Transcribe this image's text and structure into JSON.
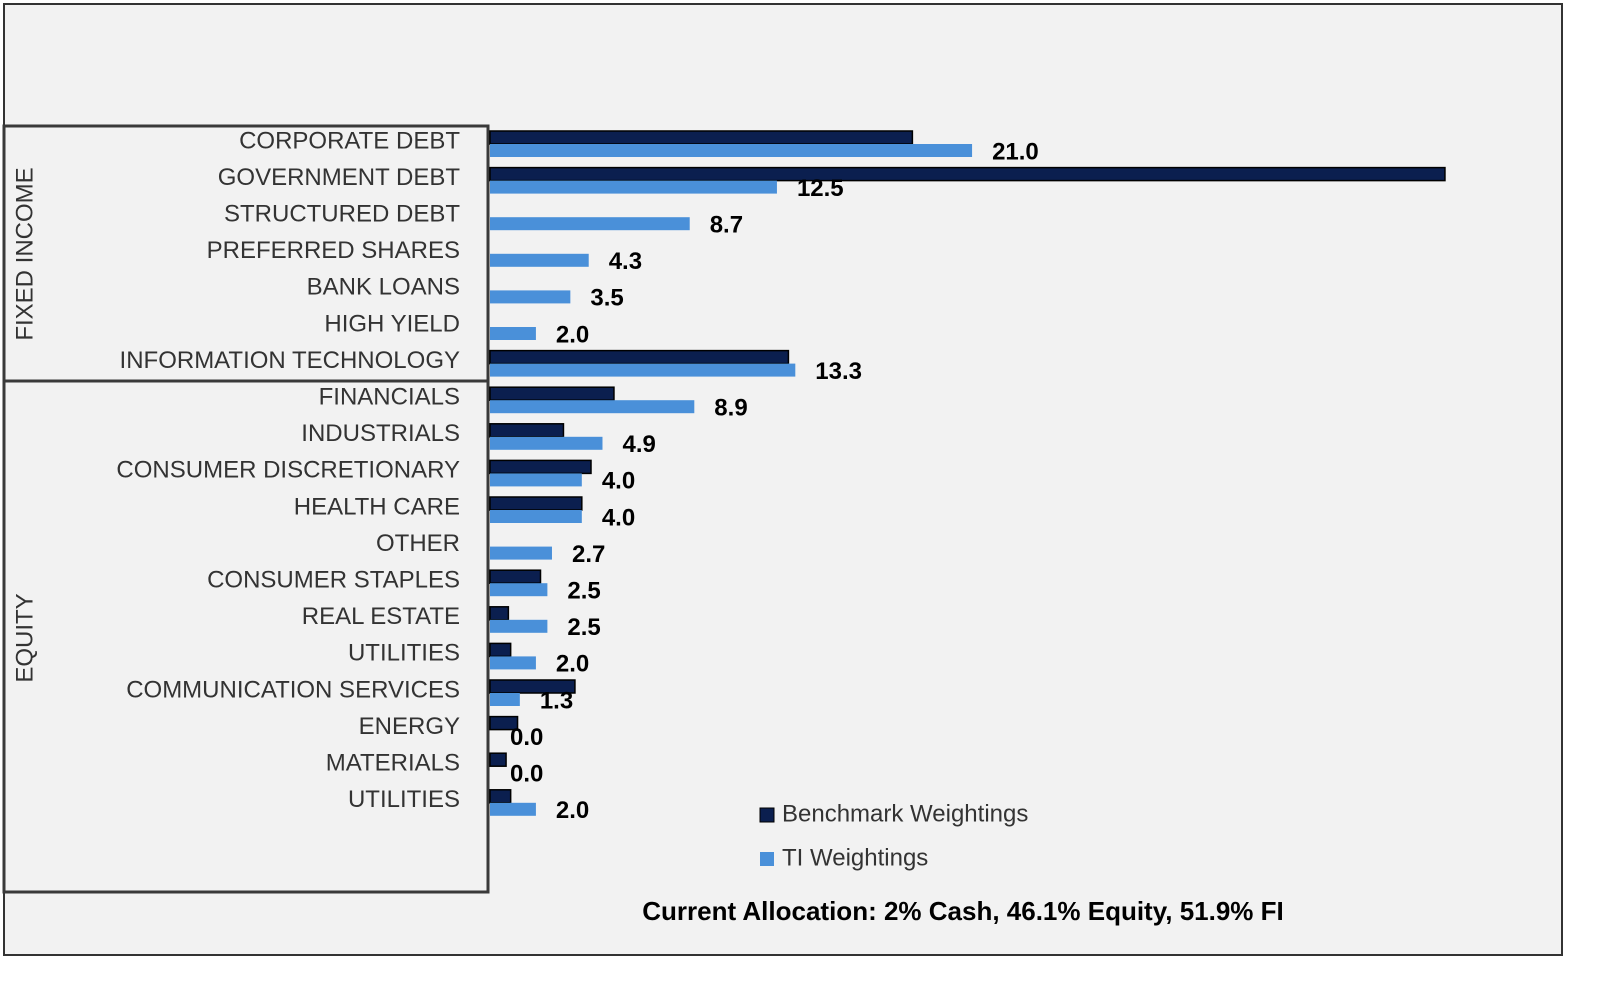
{
  "chart_data": {
    "type": "hbar",
    "categories": [
      "CORPORATE DEBT",
      "GOVERNMENT DEBT",
      "STRUCTURED DEBT",
      "PREFERRED SHARES",
      "BANK LOANS",
      "HIGH YIELD",
      "INFORMATION TECHNOLOGY",
      "FINANCIALS",
      "INDUSTRIALS",
      "CONSUMER DISCRETIONARY",
      "HEALTH CARE",
      "OTHER",
      "CONSUMER STAPLES",
      "REAL ESTATE",
      "UTILITIES",
      "COMMUNICATION SERVICES",
      "ENERGY",
      "MATERIALS",
      "UTILITIES"
    ],
    "group_labels": [
      "FIXED INCOME",
      "EQUITY"
    ],
    "series": [
      {
        "name": "Benchmark Weightings",
        "color": "#0b1f4f",
        "values": [
          18.4,
          41.6,
          0,
          0,
          0,
          0,
          13.0,
          5.4,
          3.2,
          4.4,
          4.0,
          0,
          2.2,
          0.8,
          0.9,
          3.7,
          1.2,
          0.7,
          0.9
        ]
      },
      {
        "name": "TI Weightings",
        "color": "#4a90d9",
        "values": [
          21.0,
          12.5,
          8.7,
          4.3,
          3.5,
          2.0,
          13.3,
          8.9,
          4.9,
          4.0,
          4.0,
          2.7,
          2.5,
          2.5,
          2.0,
          1.3,
          0.0,
          0.0,
          2.0
        ],
        "value_labels": [
          "21.0",
          "12.5",
          "8.7",
          "4.3",
          "3.5",
          "2.0",
          "13.3",
          "8.9",
          "4.9",
          "4.0",
          "4.0",
          "2.7",
          "2.5",
          "2.5",
          "2.0",
          "1.3",
          "0.0",
          "0.0",
          "2.0"
        ]
      }
    ],
    "xlim": [
      0,
      45
    ],
    "annotation": "Current Allocation:  2% Cash, 46.1% Equity, 51.9% FI"
  }
}
